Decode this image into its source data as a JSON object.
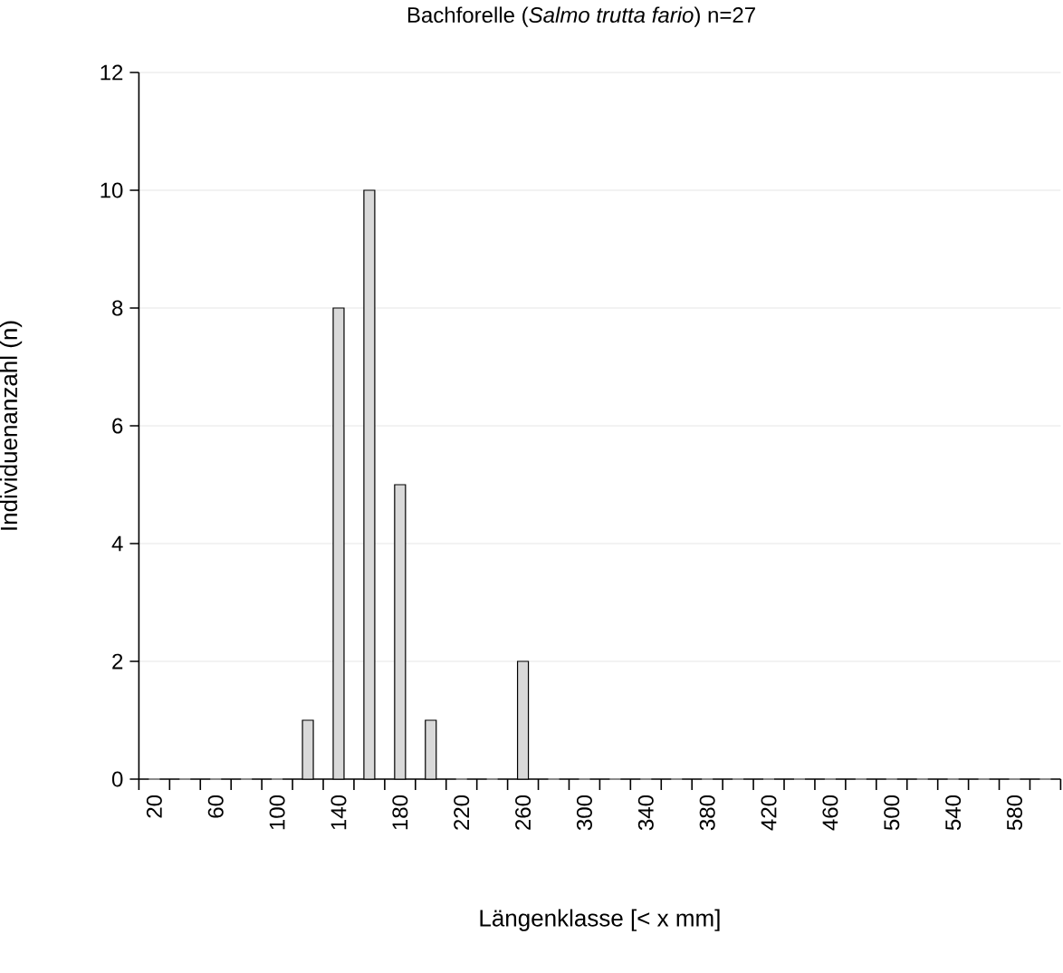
{
  "chart_data": {
    "type": "bar",
    "title": "Bachforelle (*Salmo trutta fario*) n=27",
    "xlabel": "Längenklasse [< x mm]",
    "ylabel": "Individuenanzahl (n)",
    "categories": [
      "20",
      null,
      "60",
      null,
      "100",
      null,
      "140",
      null,
      "180",
      null,
      "220",
      null,
      "260",
      null,
      "300",
      null,
      "340",
      null,
      "380",
      null,
      "420",
      null,
      "460",
      null,
      "500",
      null,
      "540",
      null,
      "580",
      null
    ],
    "values": [
      0,
      0,
      0,
      0,
      0,
      1,
      8,
      10,
      5,
      1,
      0,
      0,
      2,
      0,
      0,
      0,
      0,
      0,
      0,
      0,
      0,
      0,
      0,
      0,
      0,
      0,
      0,
      0,
      0,
      0
    ],
    "color": "#d9d9d9",
    "ylim": [
      0,
      12
    ],
    "yticks": [
      0,
      2,
      4,
      6,
      8,
      10,
      12
    ],
    "grid": "y"
  }
}
